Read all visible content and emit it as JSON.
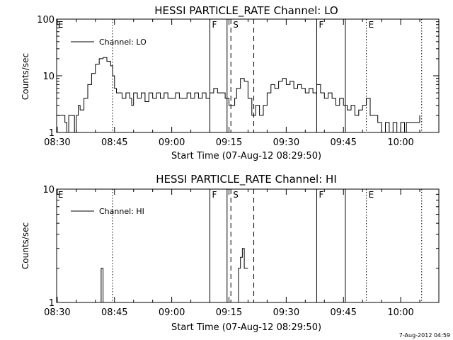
{
  "footer_timestamp": "7-Aug-2012 04:59",
  "chart_data": [
    {
      "type": "line",
      "title": "HESSI PARTICLE_RATE Channel: LO",
      "xlabel": "Start Time (07-Aug-12 08:29:50)",
      "ylabel": "Counts/sec",
      "yscale": "log",
      "ylim": [
        1,
        100
      ],
      "xlim": [
        "08:29:50",
        "10:10:00"
      ],
      "x_ticks": [
        "08:30",
        "08:45",
        "09:00",
        "09:15",
        "09:30",
        "09:45",
        "10:00"
      ],
      "y_ticks": [
        "1",
        "10",
        "100"
      ],
      "legend": {
        "label": "Channel: LO",
        "placement": "top-left"
      },
      "markers": [
        {
          "time": "08:44:30",
          "style": "dotted",
          "label": ""
        },
        {
          "time": "09:10:00",
          "style": "solid",
          "label": "F"
        },
        {
          "time": "09:14:30",
          "style": "solid",
          "label": ""
        },
        {
          "time": "09:15:30",
          "style": "dashed",
          "label": "S"
        },
        {
          "time": "09:21:30",
          "style": "dashed",
          "label": ""
        },
        {
          "time": "09:38:00",
          "style": "solid",
          "label": "F"
        },
        {
          "time": "09:45:30",
          "style": "solid",
          "label": ""
        },
        {
          "time": "09:51:00",
          "style": "dotted",
          "label": "E"
        },
        {
          "time": "10:05:30",
          "style": "dotted",
          "label": ""
        }
      ],
      "edge_labels": [
        {
          "time": "08:30:00",
          "label": "E"
        }
      ],
      "series": [
        {
          "name": "Channel: LO",
          "points": [
            [
              "08:30:00",
              2
            ],
            [
              "08:31:00",
              2
            ],
            [
              "08:32:00",
              1.5
            ],
            [
              "08:32:30",
              1
            ],
            [
              "08:33:00",
              2
            ],
            [
              "08:34:00",
              2
            ],
            [
              "08:34:30",
              1
            ],
            [
              "08:35:00",
              2
            ],
            [
              "08:35:30",
              3
            ],
            [
              "08:36:00",
              2.5
            ],
            [
              "08:37:00",
              4
            ],
            [
              "08:38:00",
              7
            ],
            [
              "08:39:00",
              11
            ],
            [
              "08:40:00",
              16
            ],
            [
              "08:41:00",
              20
            ],
            [
              "08:42:00",
              21
            ],
            [
              "08:43:00",
              18
            ],
            [
              "08:44:00",
              15
            ],
            [
              "08:44:30",
              10
            ],
            [
              "08:45:00",
              6
            ],
            [
              "08:45:30",
              5
            ],
            [
              "08:46:00",
              5
            ],
            [
              "08:47:00",
              4
            ],
            [
              "08:48:00",
              5
            ],
            [
              "08:49:00",
              4
            ],
            [
              "08:49:30",
              3
            ],
            [
              "08:50:00",
              5
            ],
            [
              "08:51:00",
              4
            ],
            [
              "08:52:00",
              5
            ],
            [
              "08:53:00",
              3.5
            ],
            [
              "08:54:00",
              5
            ],
            [
              "08:55:00",
              4
            ],
            [
              "08:56:00",
              5
            ],
            [
              "08:57:00",
              4
            ],
            [
              "08:58:00",
              5
            ],
            [
              "08:59:00",
              4
            ],
            [
              "09:00:00",
              4
            ],
            [
              "09:01:00",
              5
            ],
            [
              "09:02:00",
              4
            ],
            [
              "09:03:00",
              4
            ],
            [
              "09:04:00",
              5
            ],
            [
              "09:05:00",
              4
            ],
            [
              "09:06:00",
              5
            ],
            [
              "09:07:00",
              4
            ],
            [
              "09:08:00",
              5
            ],
            [
              "09:09:00",
              4
            ],
            [
              "09:10:00",
              5
            ],
            [
              "09:11:00",
              6
            ],
            [
              "09:12:00",
              5
            ],
            [
              "09:13:00",
              5
            ],
            [
              "09:14:00",
              4
            ],
            [
              "09:15:00",
              3
            ],
            [
              "09:16:00",
              3
            ],
            [
              "09:16:30",
              4
            ],
            [
              "09:17:00",
              6
            ],
            [
              "09:18:00",
              9
            ],
            [
              "09:19:00",
              8
            ],
            [
              "09:20:00",
              4
            ],
            [
              "09:21:00",
              2
            ],
            [
              "09:22:00",
              3
            ],
            [
              "09:23:00",
              2
            ],
            [
              "09:24:00",
              3
            ],
            [
              "09:25:00",
              5
            ],
            [
              "09:26:00",
              7
            ],
            [
              "09:27:00",
              6
            ],
            [
              "09:28:00",
              8
            ],
            [
              "09:29:00",
              9
            ],
            [
              "09:30:00",
              7
            ],
            [
              "09:31:00",
              8
            ],
            [
              "09:32:00",
              6
            ],
            [
              "09:33:00",
              7
            ],
            [
              "09:34:00",
              6
            ],
            [
              "09:35:00",
              5
            ],
            [
              "09:36:00",
              6
            ],
            [
              "09:37:00",
              5
            ],
            [
              "09:38:00",
              7
            ],
            [
              "09:39:00",
              5
            ],
            [
              "09:40:00",
              4
            ],
            [
              "09:41:00",
              5
            ],
            [
              "09:42:00",
              4
            ],
            [
              "09:43:00",
              3
            ],
            [
              "09:44:00",
              4
            ],
            [
              "09:45:00",
              3
            ],
            [
              "09:46:00",
              2.5
            ],
            [
              "09:47:00",
              3
            ],
            [
              "09:48:00",
              2
            ],
            [
              "09:49:00",
              2.5
            ],
            [
              "09:50:00",
              3
            ],
            [
              "09:51:00",
              4
            ],
            [
              "09:52:00",
              2
            ],
            [
              "09:53:00",
              2
            ],
            [
              "09:54:00",
              1.5
            ],
            [
              "09:55:00",
              1
            ],
            [
              "09:56:00",
              1.5
            ],
            [
              "09:57:00",
              1
            ],
            [
              "09:58:00",
              1.5
            ],
            [
              "09:59:00",
              1
            ],
            [
              "10:00:00",
              1.5
            ],
            [
              "10:01:00",
              1
            ],
            [
              "10:01:30",
              1.5
            ],
            [
              "10:05:00",
              2
            ]
          ]
        }
      ]
    },
    {
      "type": "line",
      "title": "HESSI PARTICLE_RATE Channel: HI",
      "xlabel": "Start Time (07-Aug-12 08:29:50)",
      "ylabel": "Counts/sec",
      "yscale": "log",
      "ylim": [
        1,
        10
      ],
      "xlim": [
        "08:29:50",
        "10:10:00"
      ],
      "x_ticks": [
        "08:30",
        "08:45",
        "09:00",
        "09:15",
        "09:30",
        "09:45",
        "10:00"
      ],
      "y_ticks": [
        "1",
        "10"
      ],
      "legend": {
        "label": "Channel: HI",
        "placement": "top-left"
      },
      "markers": [
        {
          "time": "08:44:30",
          "style": "dotted",
          "label": ""
        },
        {
          "time": "09:10:00",
          "style": "solid",
          "label": "F"
        },
        {
          "time": "09:14:30",
          "style": "solid",
          "label": ""
        },
        {
          "time": "09:15:30",
          "style": "dashed",
          "label": "S"
        },
        {
          "time": "09:21:30",
          "style": "dashed",
          "label": ""
        },
        {
          "time": "09:38:00",
          "style": "solid",
          "label": "F"
        },
        {
          "time": "09:45:30",
          "style": "solid",
          "label": ""
        },
        {
          "time": "09:51:00",
          "style": "dotted",
          "label": "E"
        },
        {
          "time": "10:05:30",
          "style": "dotted",
          "label": ""
        }
      ],
      "edge_labels": [
        {
          "time": "08:30:00",
          "label": "E"
        }
      ],
      "series": [
        {
          "name": "Channel: HI",
          "segments": [
            [
              [
                "08:41:00",
                1
              ],
              [
                "08:41:30",
                2
              ],
              [
                "08:42:00",
                1
              ]
            ],
            [
              [
                "09:17:00",
                1
              ],
              [
                "09:17:30",
                2
              ],
              [
                "09:18:00",
                2.5
              ],
              [
                "09:18:30",
                3
              ],
              [
                "09:19:00",
                2
              ],
              [
                "09:20:00",
                2
              ]
            ]
          ]
        }
      ]
    }
  ]
}
